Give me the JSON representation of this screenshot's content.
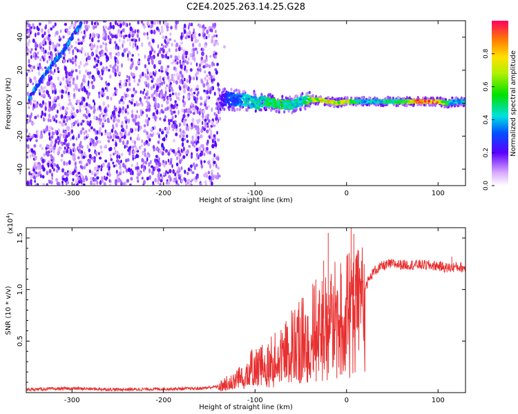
{
  "figure_title": "C2E4.2025.263.14.25.G28",
  "chart_data": [
    {
      "type": "heatmap",
      "xlabel": "Height of straight line (km)",
      "ylabel": "Frequency (Hz)",
      "xlim": [
        -350,
        130
      ],
      "ylim": [
        -50,
        50
      ],
      "xticks": [
        -300,
        -200,
        -100,
        0,
        100
      ],
      "xtick_labels": [
        "-300",
        "-200",
        "-100",
        "0",
        "100"
      ],
      "yticks": [
        -40,
        -20,
        0,
        20,
        40
      ],
      "ytick_labels": [
        "-40",
        "-20",
        "0",
        "20",
        "40"
      ],
      "colorbar": {
        "label": "Normalized spectral amplitude",
        "ticks": [
          0.0,
          0.2,
          0.4,
          0.6,
          0.8
        ],
        "tick_labels": [
          "0.0",
          "0.2",
          "0.4",
          "0.6",
          "0.8"
        ],
        "range": [
          0,
          1
        ]
      },
      "noise_region_x": [
        -350,
        -140
      ],
      "diagonal_trace": {
        "x": [
          -348,
          -340,
          -330,
          -320,
          -310,
          -300,
          -290
        ],
        "y": [
          2,
          9,
          17,
          25,
          31,
          40,
          48
        ]
      },
      "main_trace": {
        "x": [
          -140,
          -130,
          -120,
          -110,
          -100,
          -90,
          -80,
          -70,
          -60,
          -50,
          -40,
          -30,
          -20,
          -10,
          0,
          10,
          20,
          40,
          60,
          80,
          100,
          110,
          120,
          130
        ],
        "y": [
          1,
          3,
          2,
          2,
          0,
          1,
          0,
          -1,
          -1,
          1,
          2,
          2,
          1,
          0,
          1,
          1,
          1,
          1,
          1,
          1,
          1,
          0,
          1,
          1
        ],
        "amplitude": [
          0.15,
          0.3,
          0.35,
          0.45,
          0.45,
          0.5,
          0.55,
          0.55,
          0.5,
          0.45,
          0.6,
          0.75,
          0.85,
          0.7,
          0.8,
          0.5,
          0.4,
          0.5,
          0.55,
          0.95,
          0.9,
          0.5,
          0.4,
          0.5
        ]
      }
    },
    {
      "type": "line",
      "xlabel": "Height of straight line (km)",
      "ylabel": "SNR (10 * v/v)",
      "y_multiplier_label": "(x10",
      "y_multiplier_exp": "4",
      "xlim": [
        -350,
        130
      ],
      "ylim": [
        0,
        16000
      ],
      "xticks": [
        -300,
        -200,
        -100,
        0,
        100
      ],
      "xtick_labels": [
        "-300",
        "-200",
        "-100",
        "0",
        "100"
      ],
      "yticks": [
        5000,
        10000,
        15000
      ],
      "ytick_labels": [
        "0.5",
        "1.0",
        "1.5"
      ],
      "line_color": "#e83030",
      "series": [
        {
          "name": "SNR",
          "x": [
            -350,
            -300,
            -250,
            -200,
            -160,
            -140,
            -125,
            -110,
            -100,
            -90,
            -80,
            -70,
            -60,
            -50,
            -40,
            -30,
            -25,
            -20,
            -15,
            -10,
            -5,
            0,
            5,
            10,
            15,
            20,
            25,
            30,
            40,
            50,
            60,
            80,
            100,
            110,
            120,
            130
          ],
          "y": [
            300,
            400,
            300,
            350,
            400,
            600,
            1200,
            2200,
            2500,
            2800,
            3200,
            4000,
            4600,
            5200,
            6000,
            6800,
            7200,
            7600,
            8000,
            8400,
            8800,
            9200,
            9300,
            9400,
            9700,
            10300,
            11000,
            11800,
            12300,
            12500,
            12400,
            12400,
            12300,
            12100,
            12200,
            12100
          ]
        }
      ],
      "spikes": {
        "x": [
          -25,
          -20,
          5,
          8,
          10,
          115
        ],
        "y": [
          12800,
          15500,
          16000,
          15400,
          13000,
          13200
        ]
      }
    }
  ]
}
